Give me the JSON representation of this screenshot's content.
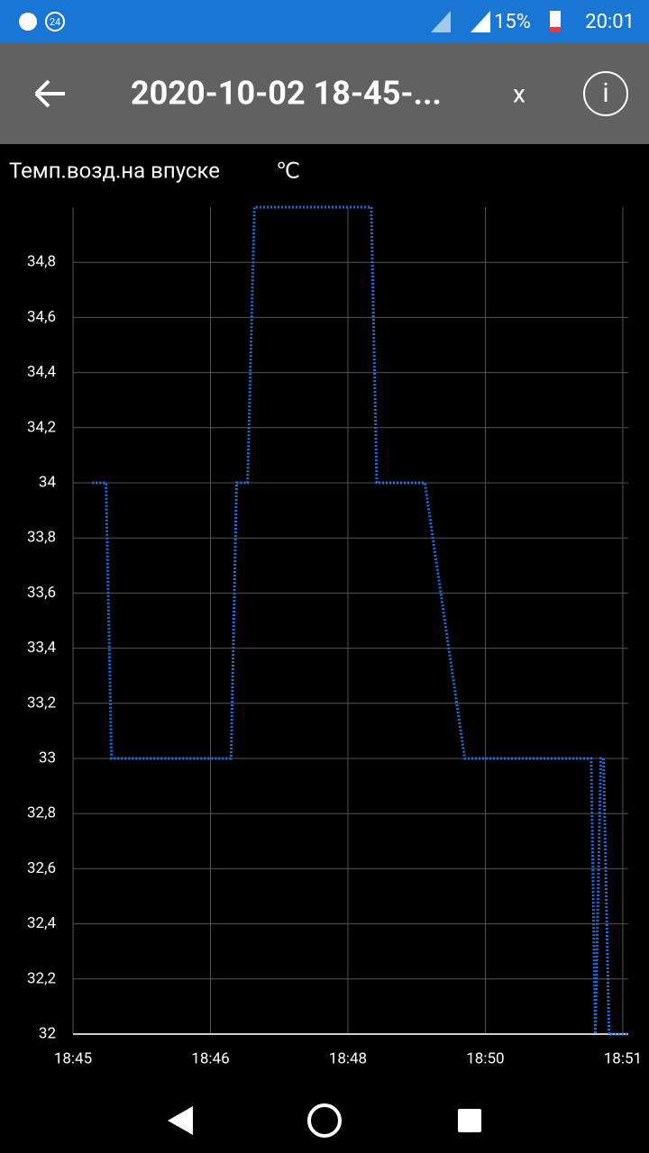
{
  "status_bar": {
    "badge": "24",
    "battery": "15%",
    "time": "20:01"
  },
  "app_bar": {
    "title": "2020-10-02 18-45-...",
    "close": "x",
    "info": "i"
  },
  "chart_data": {
    "type": "line",
    "title": "Темп.возд.на впуске",
    "unit": "℃",
    "x": [
      0.14,
      0.24,
      0.28,
      1.15,
      1.19,
      1.27,
      1.32,
      2.17,
      2.21,
      2.56,
      2.85,
      3.77,
      3.8,
      3.84,
      3.86,
      3.9,
      4.04
    ],
    "series": [
      {
        "name": "Темп.возд.на впуске",
        "color": "#1e6fe0",
        "values": [
          34,
          34,
          33,
          33,
          34,
          34,
          35,
          35,
          34,
          34,
          33,
          33,
          32,
          33,
          33,
          32,
          32
        ]
      }
    ],
    "xlim": [
      0,
      4.04
    ],
    "xticks": [
      {
        "value": 0,
        "label": "18:45"
      },
      {
        "value": 1,
        "label": "18:46"
      },
      {
        "value": 2,
        "label": "18:48"
      },
      {
        "value": 3,
        "label": "18:50"
      },
      {
        "value": 4,
        "label": "18:51"
      }
    ],
    "ylim": [
      32,
      35
    ],
    "yticks": [
      32,
      {
        "value": 32.2,
        "label": "32,2"
      },
      {
        "value": 32.4,
        "label": "32,4"
      },
      {
        "value": 32.6,
        "label": "32,6"
      },
      {
        "value": 32.8,
        "label": "32,8"
      },
      33,
      {
        "value": 33.2,
        "label": "33,2"
      },
      {
        "value": 33.4,
        "label": "33,4"
      },
      {
        "value": 33.6,
        "label": "33,6"
      },
      {
        "value": 33.8,
        "label": "33,8"
      },
      34,
      {
        "value": 34.2,
        "label": "34,2"
      },
      {
        "value": 34.4,
        "label": "34,4"
      },
      {
        "value": 34.6,
        "label": "34,6"
      },
      {
        "value": 34.8,
        "label": "34,8"
      }
    ],
    "grid": true
  }
}
